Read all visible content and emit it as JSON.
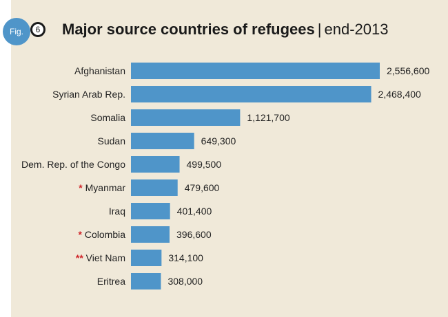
{
  "figure": {
    "badge": "Fig.",
    "number": "6"
  },
  "chart_data": {
    "type": "bar",
    "orientation": "horizontal",
    "title": "Major source countries of refugees",
    "subtitle": "end-2013",
    "categories": [
      "Afghanistan",
      "Syrian Arab Rep.",
      "Somalia",
      "Sudan",
      "Dem. Rep. of the Congo",
      "Myanmar",
      "Iraq",
      "Colombia",
      "Viet Nam",
      "Eritrea"
    ],
    "markers": [
      "",
      "",
      "",
      "",
      "",
      "*",
      "",
      "*",
      "**",
      ""
    ],
    "values": [
      2556600,
      2468400,
      1121700,
      649300,
      499500,
      479600,
      401400,
      396600,
      314100,
      308000
    ],
    "value_labels": [
      "2,556,600",
      "2,468,400",
      "1,121,700",
      "649,300",
      "499,500",
      "479,600",
      "401,400",
      "396,600",
      "314,100",
      "308,000"
    ],
    "bar_color": "#4f95c9",
    "marker_color": "#d0262a",
    "xlabel": "",
    "ylabel": "",
    "xlim": [
      0,
      2556600
    ],
    "grid": false
  }
}
